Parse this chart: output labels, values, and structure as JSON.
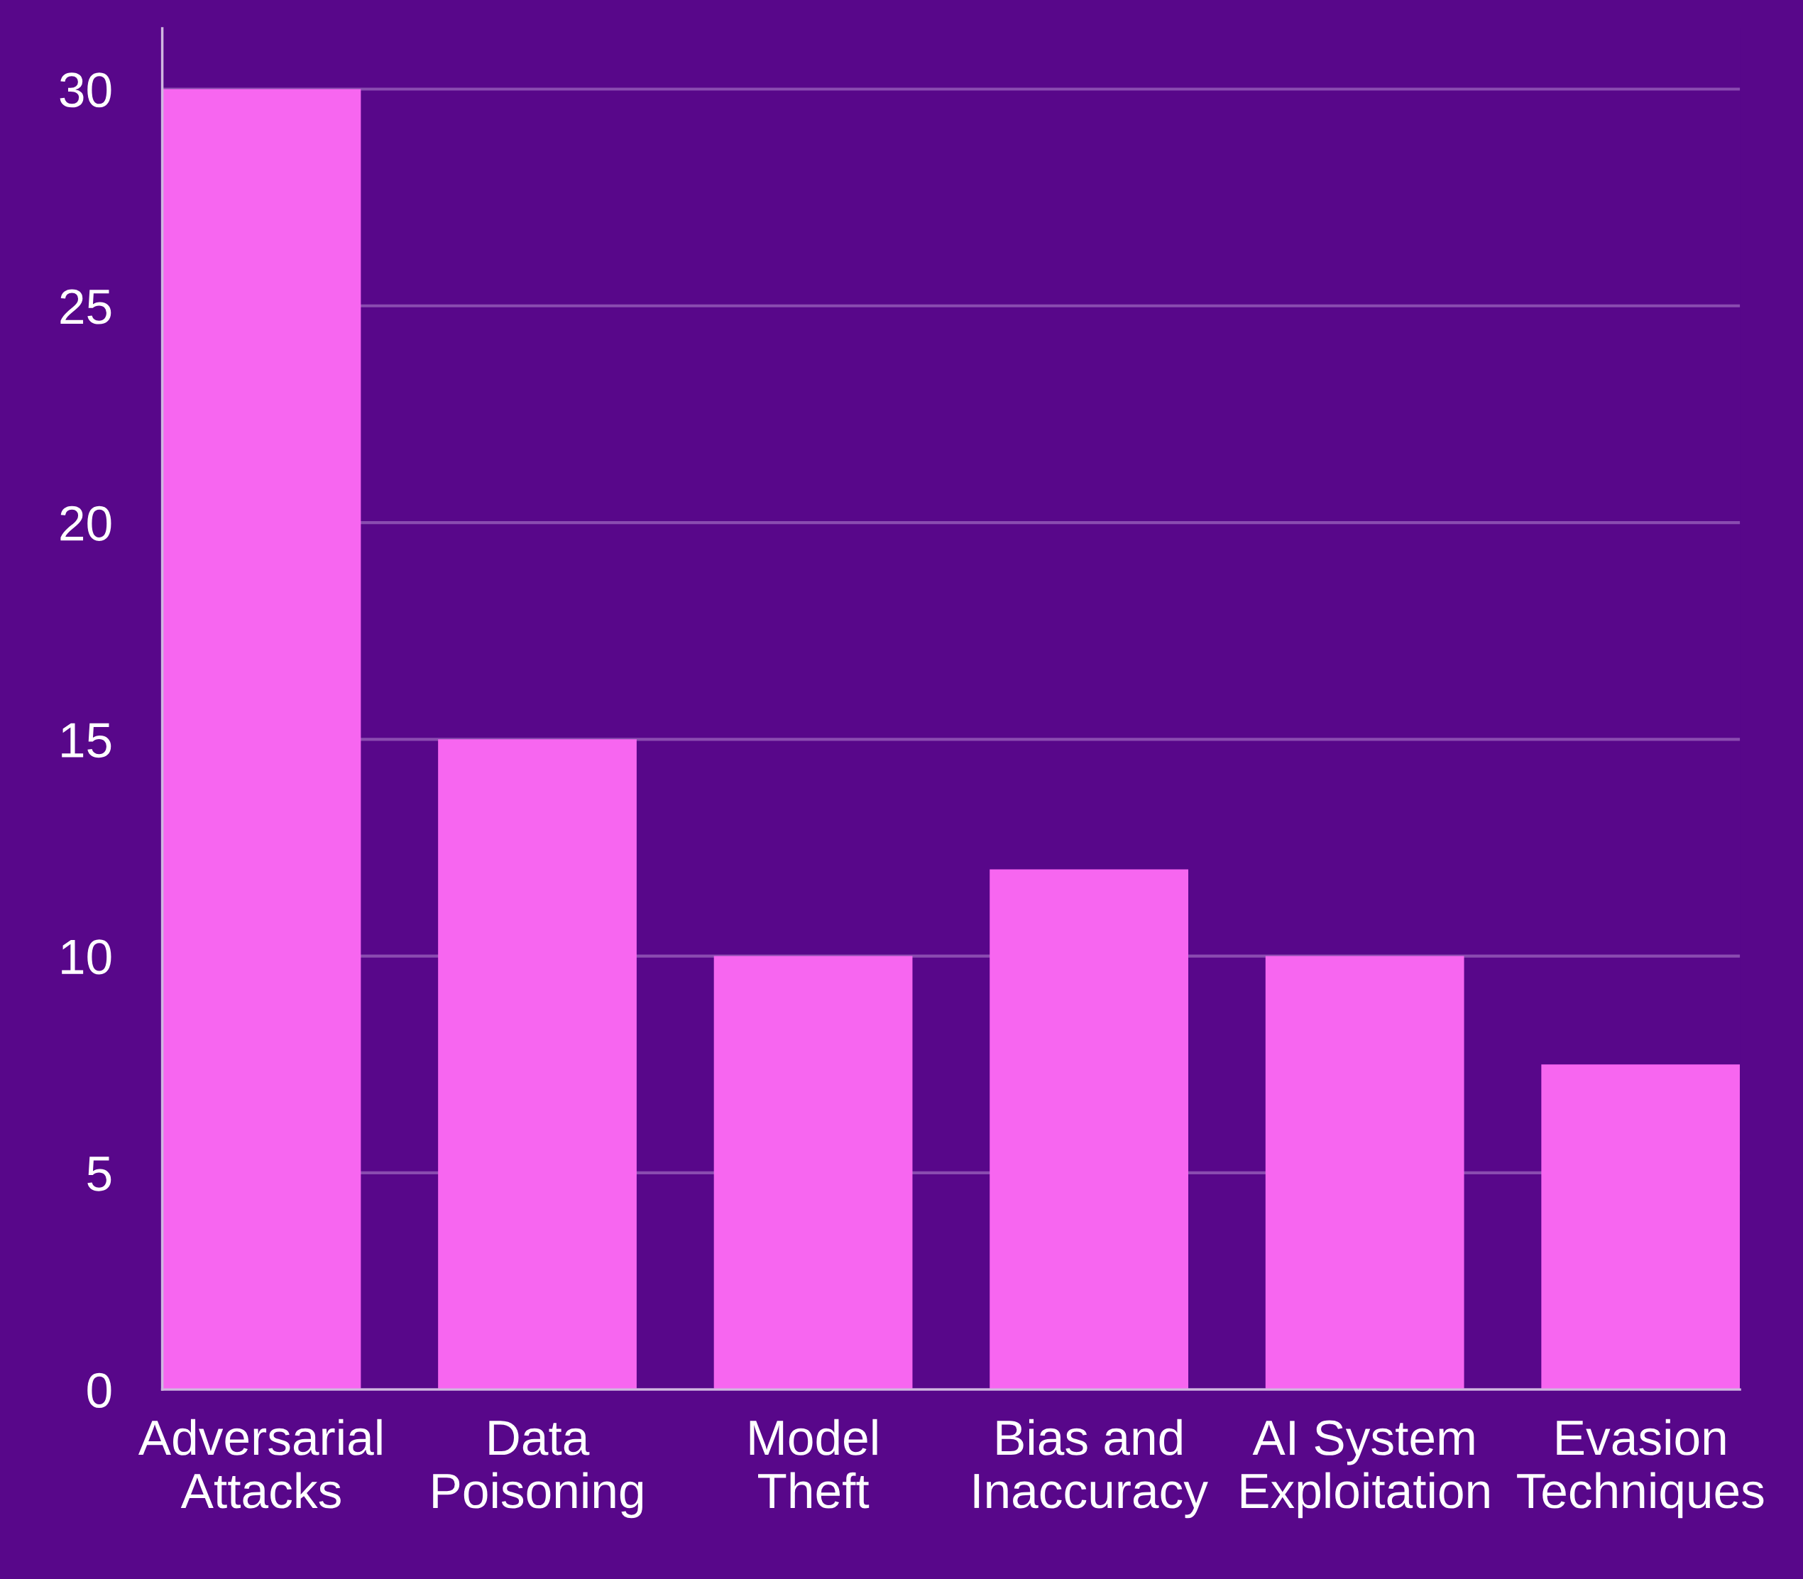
{
  "chart_data": {
    "type": "bar",
    "categories": [
      "Adversarial Attacks",
      "Data Poisoning",
      "Model Theft",
      "Bias and Inaccuracy",
      "AI System Exploitation",
      "Evasion Techniques"
    ],
    "values": [
      30,
      15,
      10,
      12,
      10,
      7.5
    ],
    "color": "#f766f0",
    "ylim": [
      0,
      31.4
    ],
    "yticks": [
      0,
      5,
      10,
      15,
      20,
      25,
      30
    ],
    "grid": "y"
  }
}
